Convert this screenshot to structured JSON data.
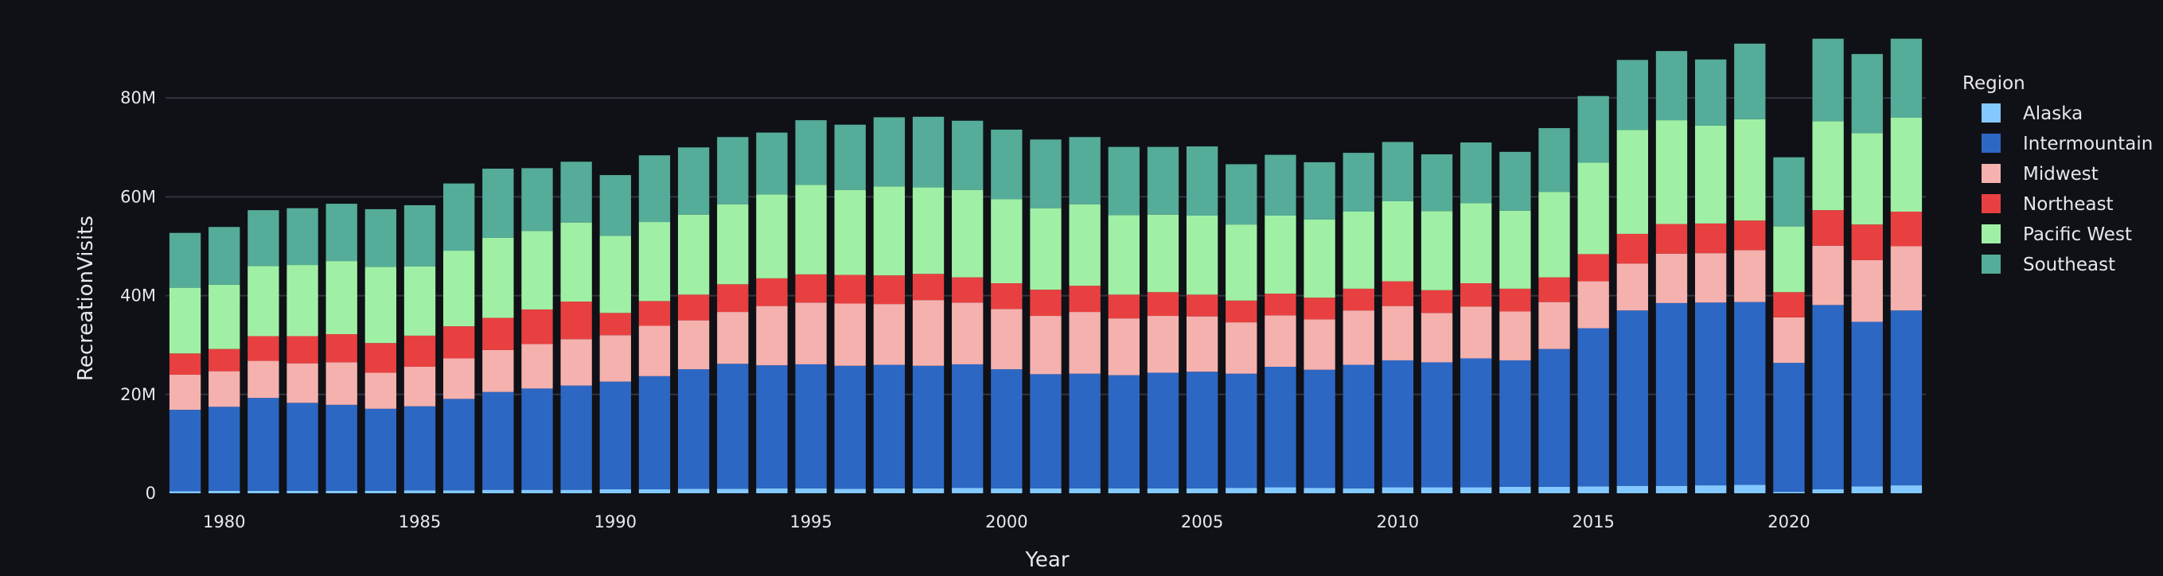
{
  "chart_data": {
    "type": "bar",
    "stacked": true,
    "xlabel": "Year",
    "ylabel": "RecreationVisits",
    "legend_title": "Region",
    "legend_placement": "right",
    "grid": true,
    "ylim": [
      0,
      95000000
    ],
    "x_ticks": [
      1980,
      1985,
      1990,
      1995,
      2000,
      2005,
      2010,
      2015,
      2020
    ],
    "y_ticks": [
      {
        "value": 0,
        "label": "0"
      },
      {
        "value": 20000000,
        "label": "20M"
      },
      {
        "value": 40000000,
        "label": "40M"
      },
      {
        "value": 60000000,
        "label": "60M"
      },
      {
        "value": 80000000,
        "label": "80M"
      }
    ],
    "categories": [
      1979,
      1980,
      1981,
      1982,
      1983,
      1984,
      1985,
      1986,
      1987,
      1988,
      1989,
      1990,
      1991,
      1992,
      1993,
      1994,
      1995,
      1996,
      1997,
      1998,
      1999,
      2000,
      2001,
      2002,
      2003,
      2004,
      2005,
      2006,
      2007,
      2008,
      2009,
      2010,
      2011,
      2012,
      2013,
      2014,
      2015,
      2016,
      2017,
      2018,
      2019,
      2020,
      2021,
      2022,
      2023
    ],
    "series": [
      {
        "name": "Alaska",
        "color": "#83c9ff",
        "values": [
          0.4,
          0.5,
          0.5,
          0.5,
          0.5,
          0.5,
          0.6,
          0.6,
          0.7,
          0.7,
          0.7,
          0.8,
          0.8,
          0.9,
          0.9,
          1.0,
          1.0,
          0.9,
          1.0,
          1.0,
          1.1,
          1.0,
          1.0,
          1.0,
          1.0,
          1.0,
          1.0,
          1.1,
          1.2,
          1.1,
          1.0,
          1.2,
          1.2,
          1.2,
          1.3,
          1.3,
          1.4,
          1.5,
          1.5,
          1.6,
          1.7,
          0.3,
          0.8,
          1.4,
          1.6
        ]
      },
      {
        "name": "Intermountain",
        "color": "#2d67c4",
        "values": [
          16.5,
          17.0,
          18.8,
          17.8,
          17.4,
          16.6,
          17.0,
          18.5,
          19.8,
          20.5,
          21.1,
          21.8,
          22.9,
          24.2,
          25.3,
          24.9,
          25.1,
          24.9,
          25.0,
          24.8,
          25.0,
          24.1,
          23.1,
          23.2,
          22.9,
          23.4,
          23.6,
          23.1,
          24.4,
          23.9,
          25.0,
          25.7,
          25.3,
          26.1,
          25.6,
          27.9,
          32.0,
          35.5,
          37.0,
          37.0,
          37.0,
          26.1,
          37.3,
          33.3,
          35.4
        ]
      },
      {
        "name": "Midwest",
        "color": "#f5b1ae",
        "values": [
          7.1,
          7.2,
          7.5,
          8.0,
          8.6,
          7.3,
          8.0,
          8.2,
          8.5,
          9.0,
          9.4,
          9.4,
          10.2,
          9.9,
          10.5,
          12.0,
          12.5,
          12.6,
          12.3,
          13.3,
          12.5,
          12.2,
          11.8,
          12.5,
          11.5,
          11.5,
          11.2,
          10.4,
          10.4,
          10.2,
          11.0,
          11.0,
          10.0,
          10.5,
          9.9,
          9.5,
          9.5,
          9.5,
          10.0,
          10.0,
          10.5,
          9.2,
          12.0,
          12.5,
          13.0
        ]
      },
      {
        "name": "Northeast",
        "color": "#e84040",
        "values": [
          4.3,
          4.5,
          5.0,
          5.5,
          5.7,
          6.0,
          6.3,
          6.5,
          6.5,
          7.0,
          7.6,
          4.5,
          5.0,
          5.2,
          5.6,
          5.6,
          5.7,
          5.8,
          5.8,
          5.3,
          5.1,
          5.2,
          5.3,
          5.3,
          4.8,
          4.8,
          4.4,
          4.4,
          4.4,
          4.4,
          4.4,
          5.0,
          4.6,
          4.7,
          4.6,
          5.0,
          5.5,
          6.0,
          6.0,
          6.0,
          6.0,
          5.1,
          7.2,
          7.2,
          7.0
        ]
      },
      {
        "name": "Pacific West",
        "color": "#9ff0a5",
        "values": [
          13.3,
          13.0,
          14.2,
          14.4,
          14.8,
          15.4,
          14.0,
          15.3,
          16.2,
          15.9,
          16.0,
          15.6,
          16.0,
          16.2,
          16.2,
          17.0,
          18.1,
          17.2,
          18.0,
          17.5,
          17.7,
          17.0,
          16.5,
          16.5,
          16.1,
          15.7,
          16.0,
          15.4,
          15.8,
          15.8,
          15.6,
          16.2,
          16.0,
          16.2,
          15.8,
          17.3,
          18.5,
          21.0,
          21.0,
          19.8,
          20.5,
          13.3,
          18.0,
          18.5,
          19.0
        ]
      },
      {
        "name": "Southeast",
        "color": "#55ac98",
        "values": [
          11.1,
          11.7,
          11.3,
          11.5,
          11.6,
          11.7,
          12.4,
          13.6,
          14.0,
          12.7,
          12.3,
          12.3,
          13.5,
          13.6,
          13.6,
          12.5,
          13.1,
          13.2,
          14.0,
          14.3,
          14.0,
          14.1,
          13.9,
          13.6,
          13.8,
          13.7,
          14.0,
          12.2,
          12.3,
          11.6,
          11.9,
          12.0,
          11.5,
          12.3,
          11.9,
          12.9,
          13.5,
          14.2,
          14.0,
          13.4,
          15.3,
          14.0,
          16.7,
          16.0,
          16.0
        ]
      }
    ]
  }
}
